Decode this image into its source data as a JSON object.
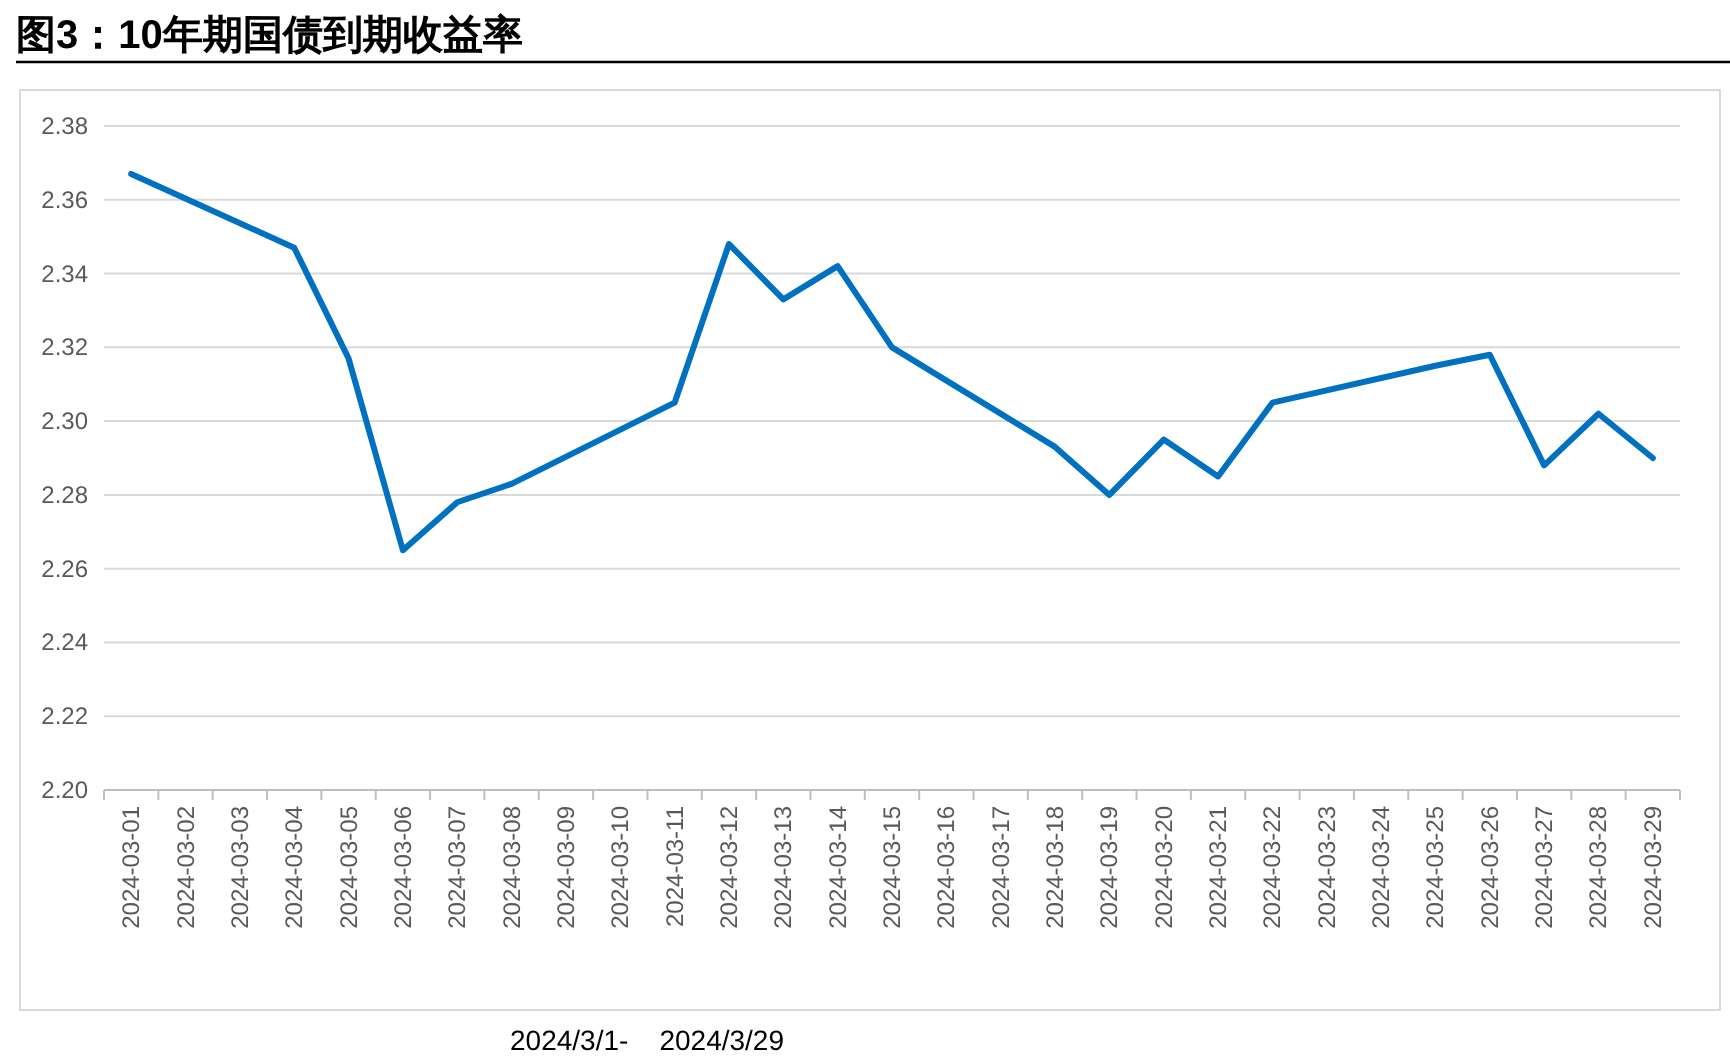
{
  "chart_data": {
    "type": "line",
    "title": "图3：10年期国债到期收益率",
    "categories": [
      "2024-03-01",
      "2024-03-02",
      "2024-03-03",
      "2024-03-04",
      "2024-03-05",
      "2024-03-06",
      "2024-03-07",
      "2024-03-08",
      "2024-03-09",
      "2024-03-10",
      "2024-03-11",
      "2024-03-12",
      "2024-03-13",
      "2024-03-14",
      "2024-03-15",
      "2024-03-16",
      "2024-03-17",
      "2024-03-18",
      "2024-03-19",
      "2024-03-20",
      "2024-03-21",
      "2024-03-22",
      "2024-03-23",
      "2024-03-24",
      "2024-03-25",
      "2024-03-26",
      "2024-03-27",
      "2024-03-28",
      "2024-03-29"
    ],
    "series": [
      {
        "color": "#0070c0",
        "values": [
          2.367,
          null,
          null,
          2.347,
          2.317,
          2.265,
          2.278,
          2.283,
          null,
          null,
          2.305,
          2.348,
          2.333,
          2.342,
          2.32,
          null,
          null,
          2.293,
          2.28,
          2.295,
          2.285,
          2.305,
          null,
          null,
          2.315,
          2.318,
          2.288,
          2.302,
          2.29
        ]
      }
    ],
    "ylim": [
      2.2,
      2.38
    ],
    "yticks": [
      {
        "value": 2.2,
        "label": "2.20"
      },
      {
        "value": 2.22,
        "label": "2.22"
      },
      {
        "value": 2.24,
        "label": "2.24"
      },
      {
        "value": 2.26,
        "label": "2.26"
      },
      {
        "value": 2.28,
        "label": "2.28"
      },
      {
        "value": 2.3,
        "label": "2.30"
      },
      {
        "value": 2.32,
        "label": "2.32"
      },
      {
        "value": 2.34,
        "label": "2.34"
      },
      {
        "value": 2.36,
        "label": "2.36"
      },
      {
        "value": 2.38,
        "label": "2.38"
      }
    ],
    "grid": "y",
    "marker": "none",
    "line_style": "solid",
    "annotations": [
      "2024/3/1-    2024/3/29"
    ]
  }
}
